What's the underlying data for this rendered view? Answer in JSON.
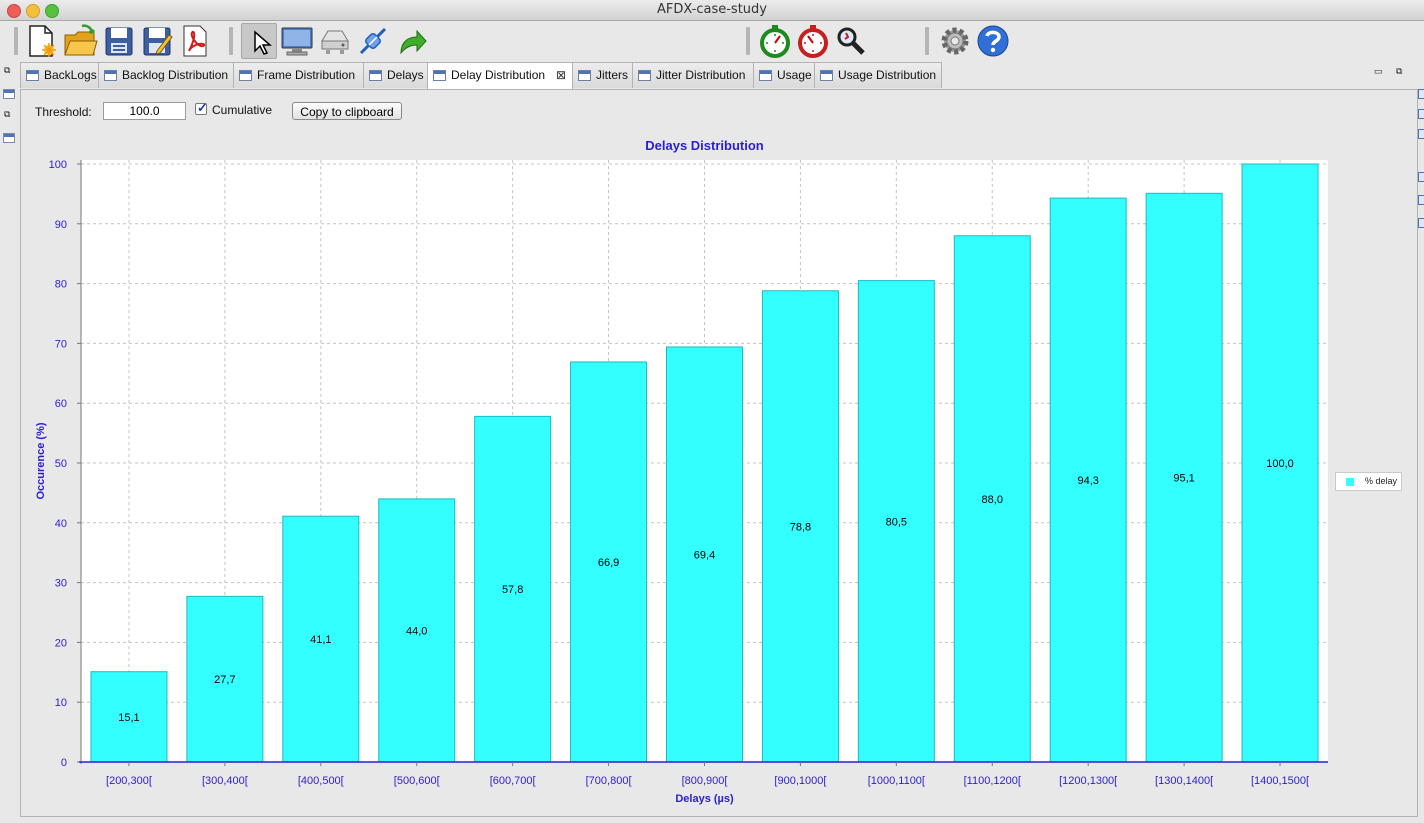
{
  "window": {
    "title": "AFDX-case-study"
  },
  "toolbar": {
    "icons": [
      "new-file-icon",
      "open-folder-icon",
      "save-icon",
      "save-as-icon",
      "pdf-icon",
      "pointer-icon",
      "monitor-icon",
      "switch-icon",
      "link-icon",
      "redo-arrow-icon",
      "timer-green-icon",
      "timer-red-icon",
      "search-icon",
      "settings-icon",
      "help-icon"
    ]
  },
  "tabs": [
    {
      "label": "BackLogs"
    },
    {
      "label": "Backlog Distribution"
    },
    {
      "label": "Frame Distribution"
    },
    {
      "label": "Delays"
    },
    {
      "label": "Delay Distribution",
      "active": true
    },
    {
      "label": "Jitters"
    },
    {
      "label": "Jitter Distribution"
    },
    {
      "label": "Usage"
    },
    {
      "label": "Usage Distribution"
    }
  ],
  "controls": {
    "threshold_label": "Threshold:",
    "threshold_value": "100.0",
    "cumulative_label": "Cumulative",
    "cumulative_checked": true,
    "copy_label": "Copy to clipboard"
  },
  "colors": {
    "bar": "#33ffff",
    "bar_border": "#1fb8c4",
    "axis_text": "#2a1fd0",
    "title": "#2a1fd0"
  },
  "chart_data": {
    "type": "bar",
    "title": "Delays Distribution",
    "xlabel": "Delays (µs)",
    "ylabel": "Occurence (%)",
    "ylim": [
      0,
      100
    ],
    "yticks": [
      0,
      10,
      20,
      30,
      40,
      50,
      60,
      70,
      80,
      90,
      100
    ],
    "grid": true,
    "legend_position": "right",
    "categories": [
      "[200,300[",
      "[300,400[",
      "[400,500[",
      "[500,600[",
      "[600,700[",
      "[700,800[",
      "[800,900[",
      "[900,1000[",
      "[1000,1100[",
      "[1100,1200[",
      "[1200,1300[",
      "[1300,1400[",
      "[1400,1500["
    ],
    "series": [
      {
        "name": "% delay",
        "values": [
          15.1,
          27.7,
          41.1,
          44.0,
          57.8,
          66.9,
          69.4,
          78.8,
          80.5,
          88.0,
          94.3,
          95.1,
          100.0
        ],
        "labels": [
          "15,1",
          "27,7",
          "41,1",
          "44,0",
          "57,8",
          "66,9",
          "69,4",
          "78,8",
          "80,5",
          "88,0",
          "94,3",
          "95,1",
          "100,0"
        ]
      }
    ]
  }
}
